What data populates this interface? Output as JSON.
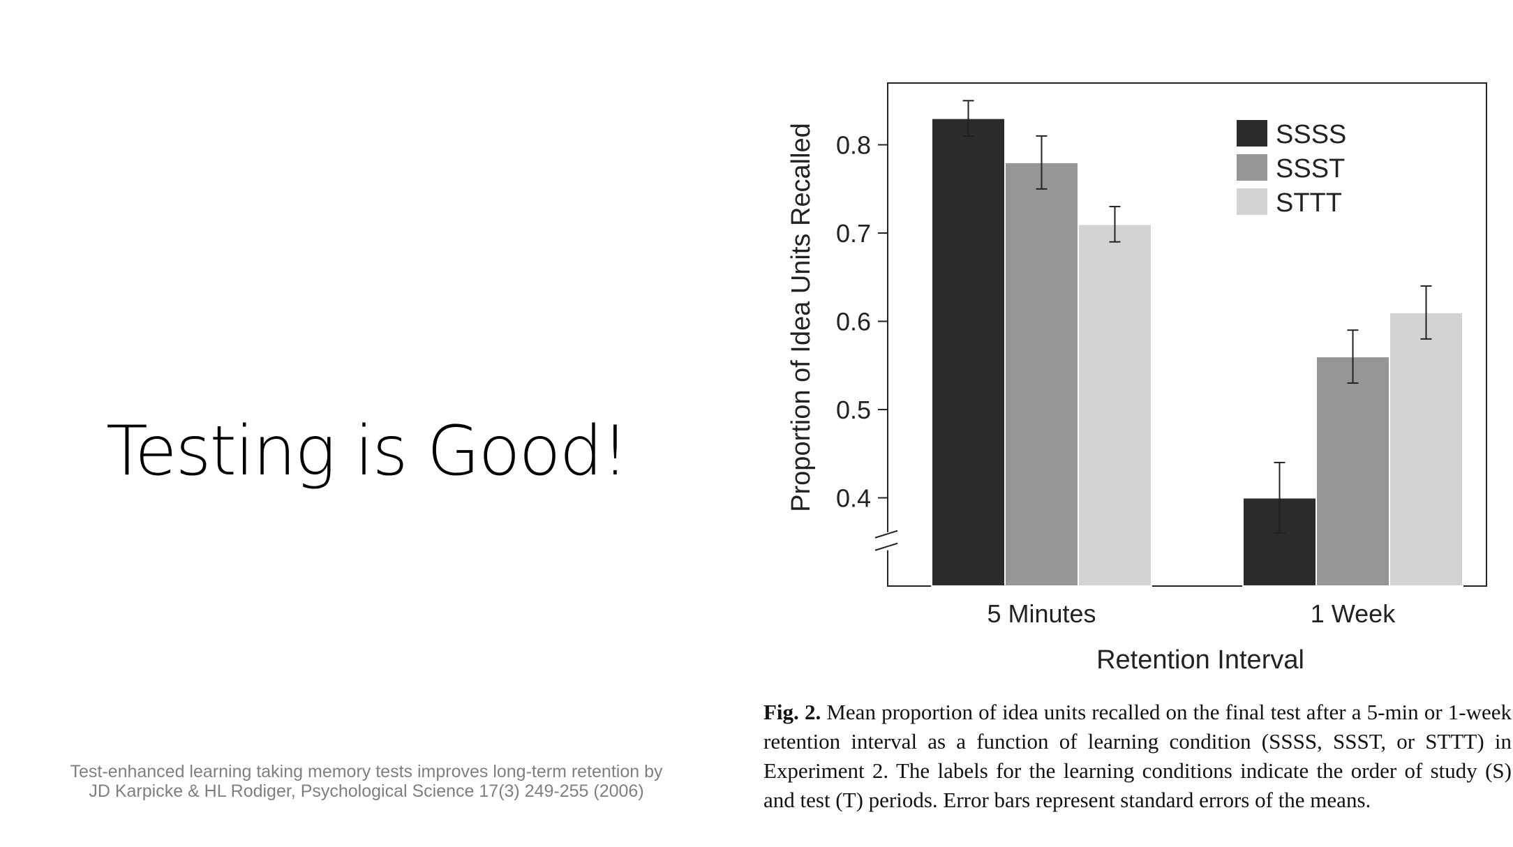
{
  "slide": {
    "title": "Testing is Good!",
    "citation_line1": "Test-enhanced learning taking memory tests improves long-term retention by",
    "citation_line2": "JD Karpicke & HL Rodiger, Psychological Science 17(3) 249-255 (2006)"
  },
  "caption": {
    "label": "Fig. 2.",
    "text": "Mean proportion of idea units recalled on the final test after a 5-min or 1-week retention interval as a function of learning condition (SSSS, SSST, or STTT) in Experiment 2. The labels for the learning conditions indicate the order of study (S) and test (T) periods. Error bars represent standard errors of the means."
  },
  "chart_data": {
    "type": "bar",
    "categories": [
      "5 Minutes",
      "1 Week"
    ],
    "xlabel": "Retention Interval",
    "ylabel": "Proportion of Idea Units Recalled",
    "ylim": [
      0.3,
      0.87
    ],
    "yticks": [
      "0.4",
      "0.5",
      "0.6",
      "0.7",
      "0.8"
    ],
    "axis_break": true,
    "legend_position": "top-right",
    "grid": false,
    "series": [
      {
        "name": "SSSS",
        "color": "#2b2b2b",
        "values": [
          0.83,
          0.4
        ],
        "errors": [
          0.02,
          0.04
        ]
      },
      {
        "name": "SSST",
        "color": "#969696",
        "values": [
          0.78,
          0.56
        ],
        "errors": [
          0.03,
          0.03
        ]
      },
      {
        "name": "STTT",
        "color": "#d3d3d3",
        "values": [
          0.71,
          0.61
        ],
        "errors": [
          0.02,
          0.03
        ]
      }
    ]
  }
}
